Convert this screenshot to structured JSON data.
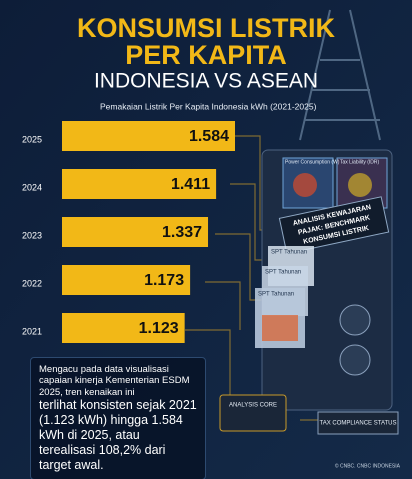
{
  "chart_data": {
    "type": "bar",
    "horizontal": true,
    "title": "KONSUMSI LISTRIK",
    "title_line2": "PER KAPITA",
    "subtitle": "INDONESIA VS ASEAN",
    "caption": "Pemakaian Listrik Per Kapita Indonesia kWh (2021-2025)",
    "categories": [
      "2025",
      "2024",
      "2023",
      "2022",
      "2021"
    ],
    "values": [
      1584,
      1411,
      1337,
      1173,
      1123
    ],
    "value_labels": [
      "1.584",
      "1.411",
      "1.337",
      "1.173",
      "1.123"
    ],
    "color": "#f2b817"
  },
  "paragraph": {
    "intro": "Mengacu pada data visualisasi capaian kinerja Kementerian ESDM 2025, tren kenaikan ini",
    "highlight": "terlihat konsisten sejak 2021 (1.123 kWh) hingga 1.584 kWh di 2025, atau terealisasi 108,2% dari target awal."
  },
  "illustration": {
    "panel_left": "Power Consumption (W)",
    "panel_right": "Tax Liability (IDR)",
    "banner": [
      "ANALISIS KEWAJARAN",
      "PAJAK: BENCHMARK",
      "KONSUMSI LISTRIK"
    ],
    "documents": [
      "SPT Tahunan",
      "SPT Tahunan",
      "SPT Tahunan"
    ],
    "core": "ANALYSIS CORE",
    "status": "TAX COMPLIANCE STATUS"
  },
  "credit": "© CNBC. CNBC INDONESIA"
}
